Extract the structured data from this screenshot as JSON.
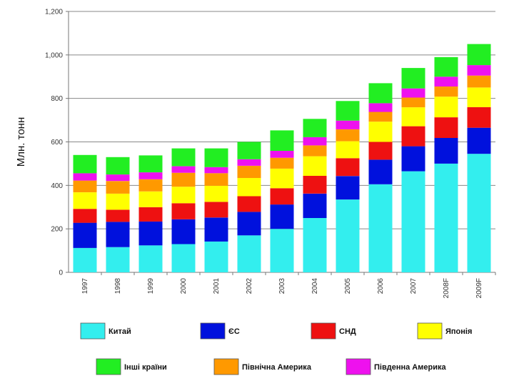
{
  "chart_data": {
    "type": "bar",
    "stacked": true,
    "title": "",
    "xlabel": "",
    "ylabel": "Млн. тонн",
    "ylim": [
      0,
      1200
    ],
    "yticks": [
      0,
      200,
      400,
      600,
      800,
      1000,
      1200
    ],
    "ytick_labels": [
      "0",
      "200",
      "400",
      "600",
      "800",
      "1,000",
      "1,200"
    ],
    "categories": [
      "1997",
      "1998",
      "1999",
      "2000",
      "2001",
      "2002",
      "2003",
      "2004",
      "2005",
      "2006",
      "2007",
      "2008F",
      "2009F"
    ],
    "series": [
      {
        "name": "Китай",
        "color": "#33eeee",
        "values": [
          112,
          116,
          124,
          130,
          142,
          170,
          200,
          250,
          335,
          405,
          465,
          500,
          545
        ]
      },
      {
        "name": "ЄС",
        "color": "#0011dd",
        "values": [
          116,
          116,
          110,
          114,
          110,
          108,
          112,
          112,
          108,
          113,
          115,
          118,
          120
        ]
      },
      {
        "name": "СНД",
        "color": "#ee1111",
        "values": [
          64,
          56,
          66,
          74,
          72,
          72,
          75,
          82,
          82,
          82,
          92,
          95,
          95
        ]
      },
      {
        "name": "Японія",
        "color": "#ffff00",
        "values": [
          76,
          74,
          72,
          76,
          74,
          84,
          90,
          90,
          78,
          93,
          87,
          95,
          90
        ]
      },
      {
        "name": "Північна Америка",
        "color": "#ff9900",
        "values": [
          54,
          58,
          56,
          64,
          58,
          56,
          50,
          50,
          55,
          45,
          45,
          47,
          55
        ]
      },
      {
        "name": "Південна Америка",
        "color": "#ee11ee",
        "values": [
          34,
          30,
          32,
          30,
          28,
          30,
          32,
          38,
          40,
          40,
          42,
          45,
          48
        ]
      },
      {
        "name": "Інші країни",
        "color": "#22ee22",
        "values": [
          84,
          80,
          78,
          82,
          86,
          80,
          94,
          84,
          90,
          92,
          94,
          90,
          97
        ]
      }
    ],
    "legend": {
      "placement": "bottom",
      "order": [
        "Китай",
        "ЄС",
        "СНД",
        "Японія",
        "Інші країни",
        "Північна Америка",
        "Південна Америка"
      ]
    },
    "grid": true
  }
}
